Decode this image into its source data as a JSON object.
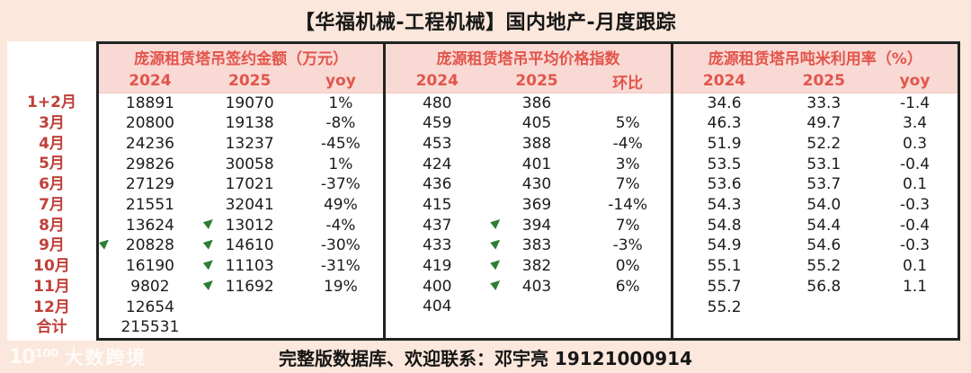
{
  "title": "【华福机械-工程机械】国内地产-月度跟踪",
  "footer": {
    "contact": "完整版数据库、欢迎联系：邓宇亮 19121000914"
  },
  "watermark": {
    "logo": "10¹⁰⁰",
    "brand": "大数跨境"
  },
  "colors": {
    "page_bg": "#fbe7db",
    "table_header_bg": "#f9d9d4",
    "accent_red": "#e2554c",
    "row_label_red": "#c0403a",
    "flag_green": "#2e7d33",
    "border": "#222222",
    "data_text": "#1c1c1c"
  },
  "icons": {
    "green-flag-icon": "small green corner triangle marker"
  },
  "chart_data": {
    "type": "table",
    "title": "【华福机械-工程机械】国内地产-月度跟踪",
    "sections": [
      {
        "title": "庞源租赁塔吊签约金额（万元）",
        "columns": [
          "2024",
          "2025",
          "yoy"
        ]
      },
      {
        "title": "庞源租赁塔吊平均价格指数",
        "columns": [
          "2024",
          "2025",
          "环比"
        ]
      },
      {
        "title": "庞源租赁塔吊吨米利用率（%）",
        "columns": [
          "2024",
          "2025",
          "yoy"
        ]
      }
    ],
    "rows": [
      {
        "label": "1+2月",
        "s1": [
          "18891",
          "19070",
          "1%"
        ],
        "s2": [
          "480",
          "386",
          ""
        ],
        "s3": [
          "34.6",
          "33.3",
          "-1.4"
        ]
      },
      {
        "label": "3月",
        "s1": [
          "20800",
          "19138",
          "-8%"
        ],
        "s2": [
          "459",
          "405",
          "5%"
        ],
        "s3": [
          "46.3",
          "49.7",
          "3.4"
        ]
      },
      {
        "label": "4月",
        "s1": [
          "24236",
          "13237",
          "-45%"
        ],
        "s2": [
          "453",
          "388",
          "-4%"
        ],
        "s3": [
          "51.9",
          "52.2",
          "0.3"
        ]
      },
      {
        "label": "5月",
        "s1": [
          "29826",
          "30058",
          "1%"
        ],
        "s2": [
          "424",
          "401",
          "3%"
        ],
        "s3": [
          "53.5",
          "53.1",
          "-0.4"
        ]
      },
      {
        "label": "6月",
        "s1": [
          "27129",
          "17021",
          "-37%"
        ],
        "s2": [
          "436",
          "430",
          "7%"
        ],
        "s3": [
          "53.6",
          "53.7",
          "0.1"
        ]
      },
      {
        "label": "7月",
        "s1": [
          "21551",
          "32041",
          "49%"
        ],
        "s2": [
          "415",
          "369",
          "-14%"
        ],
        "s3": [
          "54.3",
          "54.0",
          "-0.3"
        ]
      },
      {
        "label": "8月",
        "s1": [
          "13624",
          "13012",
          "-4%"
        ],
        "s2": [
          "437",
          "394",
          "7%"
        ],
        "s3": [
          "54.8",
          "54.4",
          "-0.4"
        ]
      },
      {
        "label": "9月",
        "s1": [
          "20828",
          "14610",
          "-30%"
        ],
        "s2": [
          "433",
          "383",
          "-3%"
        ],
        "s3": [
          "54.9",
          "54.6",
          "-0.3"
        ]
      },
      {
        "label": "10月",
        "s1": [
          "16190",
          "11103",
          "-31%"
        ],
        "s2": [
          "419",
          "382",
          "0%"
        ],
        "s3": [
          "55.1",
          "55.2",
          "0.1"
        ]
      },
      {
        "label": "11月",
        "s1": [
          "9802",
          "11692",
          "19%"
        ],
        "s2": [
          "400",
          "403",
          "6%"
        ],
        "s3": [
          "55.7",
          "56.8",
          "1.1"
        ]
      },
      {
        "label": "12月",
        "s1": [
          "12654",
          "",
          ""
        ],
        "s2": [
          "404",
          "",
          ""
        ],
        "s3": [
          "55.2",
          "",
          ""
        ]
      },
      {
        "label": "合计",
        "s1": [
          "215531",
          "",
          ""
        ],
        "s2": [
          "",
          "",
          ""
        ],
        "s3": [
          "",
          "",
          ""
        ]
      }
    ],
    "markers": {
      "description": "green corner flag markers on cells",
      "cells": [
        {
          "row": "9月",
          "section": 1,
          "col": "2024",
          "edge": true
        },
        {
          "row": "8月",
          "section": 1,
          "col": "2025"
        },
        {
          "row": "9月",
          "section": 1,
          "col": "2025"
        },
        {
          "row": "10月",
          "section": 1,
          "col": "2025"
        },
        {
          "row": "11月",
          "section": 1,
          "col": "2025"
        },
        {
          "row": "8月",
          "section": 2,
          "col": "2025"
        },
        {
          "row": "9月",
          "section": 2,
          "col": "2025"
        },
        {
          "row": "10月",
          "section": 2,
          "col": "2025"
        },
        {
          "row": "11月",
          "section": 2,
          "col": "2025"
        }
      ]
    }
  }
}
